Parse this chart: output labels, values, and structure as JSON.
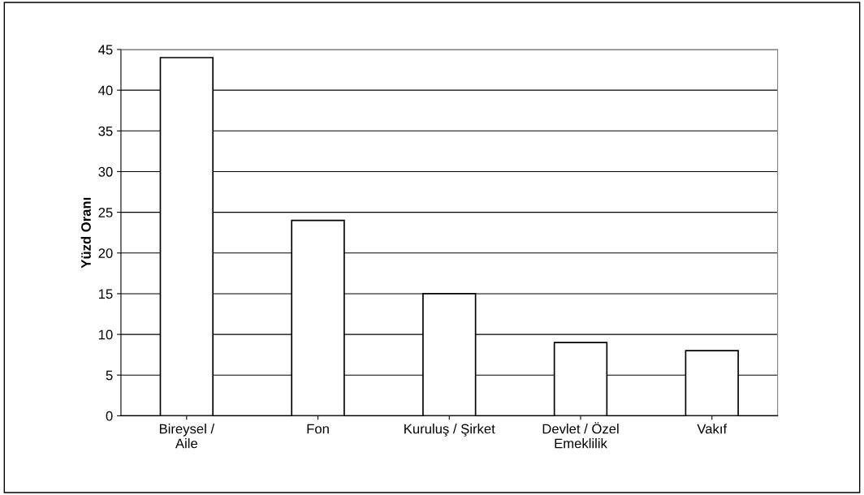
{
  "chart_data": {
    "type": "bar",
    "ylabel": "Yüzd Oranı",
    "categories": [
      "Bireysel /\nAile",
      "Fon",
      "Kuruluş / Şirket",
      "Devlet / Özel\nEmeklilik",
      "Vakıf"
    ],
    "values": [
      44,
      24,
      15,
      9,
      8
    ],
    "color": "#ffffff",
    "ylim": [
      0,
      45
    ],
    "yticks": [
      0,
      5,
      10,
      15,
      20,
      25,
      30,
      35,
      40,
      45
    ],
    "grid": "y",
    "legend": false
  }
}
